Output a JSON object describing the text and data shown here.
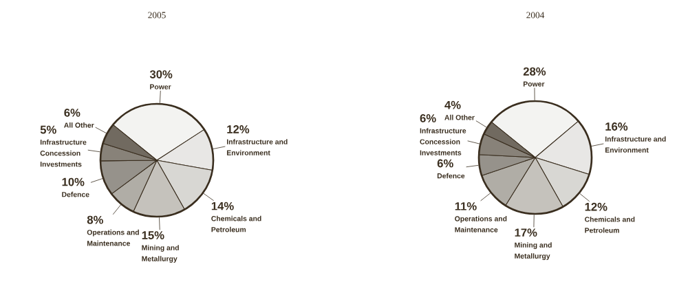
{
  "chart_data": [
    {
      "type": "pie",
      "title": "2005",
      "categories": [
        "Power",
        "Infrastructure and Environment",
        "Chemicals and Petroleum",
        "Mining and Metallurgy",
        "Operations and Maintenance",
        "Defence",
        "Infrastructure Concession Investments",
        "All Other"
      ],
      "values": [
        30,
        12,
        14,
        15,
        8,
        10,
        5,
        6
      ],
      "value_labels": [
        "30%",
        "12%",
        "14%",
        "15%",
        "8%",
        "10%",
        "5%",
        "6%"
      ],
      "colors": [
        "#f3f3f1",
        "#e8e7e5",
        "#d8d7d3",
        "#c5c2bc",
        "#b0ada6",
        "#96928b",
        "#888279",
        "#716a60"
      ],
      "legend": false
    },
    {
      "type": "pie",
      "title": "2004",
      "categories": [
        "Power",
        "Infrastructure and Environment",
        "Chemicals and Petroleum",
        "Mining and Metallurgy",
        "Operations and Maintenance",
        "Defence",
        "Infrastructure Concession Investments",
        "All Other"
      ],
      "values": [
        28,
        16,
        12,
        17,
        11,
        6,
        6,
        4
      ],
      "value_labels": [
        "28%",
        "16%",
        "12%",
        "17%",
        "11%",
        "6%",
        "6%",
        "4%"
      ],
      "colors": [
        "#f3f3f1",
        "#e8e7e5",
        "#d8d7d3",
        "#c5c2bc",
        "#b0ada6",
        "#96928b",
        "#888279",
        "#716a60"
      ],
      "legend": false
    }
  ]
}
